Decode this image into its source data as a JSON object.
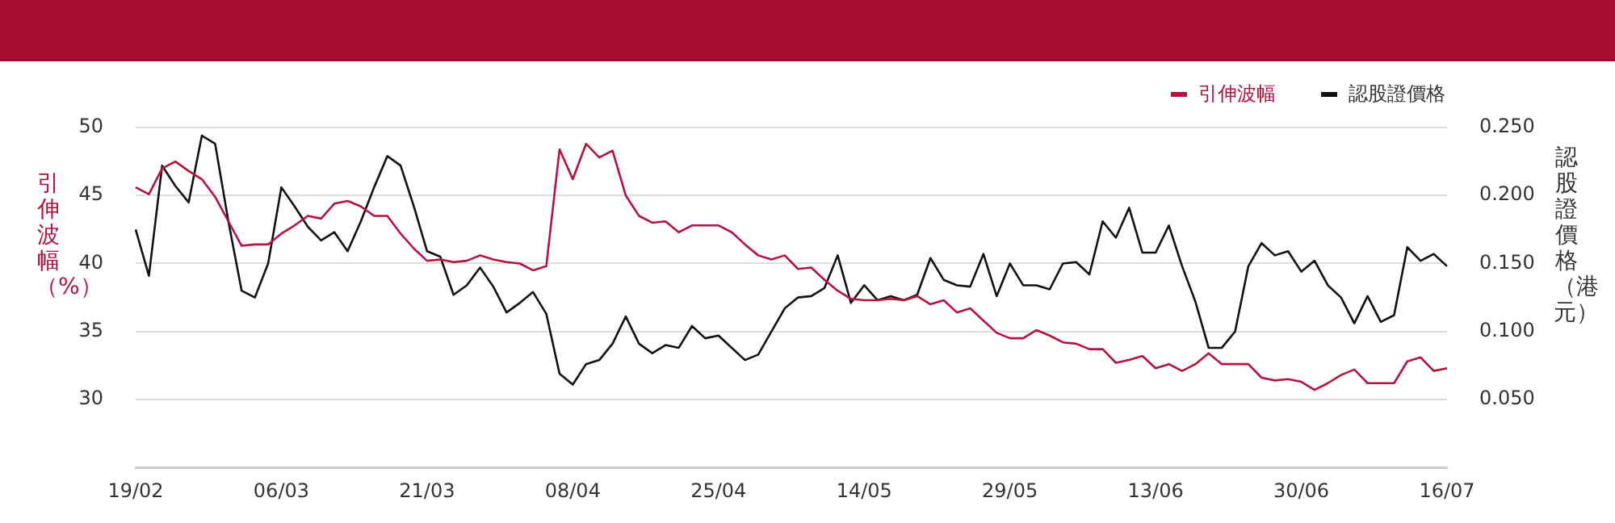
{
  "chart_data": {
    "type": "line",
    "ylabel": "引伸波幅（%）",
    "y2label": "認股證價格（港元）",
    "categories": [
      "19/02",
      null,
      null,
      null,
      null,
      null,
      null,
      null,
      null,
      null,
      null,
      "06/03",
      null,
      null,
      null,
      null,
      null,
      null,
      null,
      null,
      null,
      null,
      "21/03",
      null,
      null,
      null,
      null,
      null,
      null,
      null,
      null,
      null,
      null,
      "08/04",
      null,
      null,
      null,
      null,
      null,
      null,
      null,
      null,
      null,
      null,
      "25/04",
      null,
      null,
      null,
      null,
      null,
      null,
      null,
      null,
      null,
      null,
      "14/05",
      null,
      null,
      null,
      null,
      null,
      null,
      null,
      null,
      null,
      null,
      "29/05",
      null,
      null,
      null,
      null,
      null,
      null,
      null,
      null,
      null,
      null,
      "13/06",
      null,
      null,
      null,
      null,
      null,
      null,
      null,
      null,
      null,
      null,
      "30/06",
      null,
      null,
      null,
      null,
      null,
      null,
      null,
      null,
      null,
      null,
      "16/07"
    ],
    "series": [
      {
        "name": "引伸波幅",
        "color": "#b5123f",
        "values": [
          45.6,
          45.1,
          47.0,
          47.5,
          46.8,
          46.2,
          44.9,
          43.1,
          41.3,
          41.4,
          41.4,
          42.2,
          42.8,
          43.5,
          43.3,
          44.4,
          44.6,
          44.2,
          43.5,
          43.5,
          42.2,
          41.1,
          40.2,
          40.3,
          40.1,
          40.2,
          40.6,
          40.3,
          40.1,
          40.0,
          39.5,
          39.8,
          48.4,
          46.2,
          48.8,
          47.8,
          48.3,
          45.0,
          43.5,
          43.0,
          43.1,
          42.3,
          42.8,
          42.8,
          42.8,
          42.3,
          41.4,
          40.6,
          40.3,
          40.6,
          39.6,
          39.7,
          38.8,
          38.0,
          37.4,
          37.3,
          37.3,
          37.4,
          37.3,
          37.6,
          37.0,
          37.3,
          36.4,
          36.7,
          35.8,
          34.9,
          34.5,
          34.5,
          35.1,
          34.7,
          34.2,
          34.1,
          33.7,
          33.7,
          32.7,
          32.9,
          33.2,
          32.3,
          32.6,
          32.1,
          32.6,
          33.4,
          32.6,
          32.6,
          32.6,
          31.6,
          31.4,
          31.5,
          31.3,
          30.7,
          31.2,
          31.8,
          32.2,
          31.2,
          31.2,
          31.2,
          32.8,
          33.1,
          32.1,
          32.3
        ]
      },
      {
        "name": "認股證價格",
        "color": "#111111",
        "axis": "y2",
        "values": [
          0.175,
          0.141,
          0.222,
          0.207,
          0.195,
          0.244,
          0.238,
          0.181,
          0.13,
          0.125,
          0.15,
          0.206,
          0.192,
          0.177,
          0.167,
          0.173,
          0.159,
          0.181,
          0.206,
          0.229,
          0.222,
          0.192,
          0.159,
          0.155,
          0.127,
          0.134,
          0.147,
          0.133,
          0.114,
          0.121,
          0.129,
          0.113,
          0.069,
          0.061,
          0.076,
          0.079,
          0.091,
          0.111,
          0.091,
          0.084,
          0.09,
          0.088,
          0.104,
          0.095,
          0.097,
          0.088,
          0.079,
          0.083,
          0.1,
          0.117,
          0.125,
          0.126,
          0.132,
          0.156,
          0.121,
          0.134,
          0.123,
          0.126,
          0.123,
          0.127,
          0.154,
          0.138,
          0.134,
          0.133,
          0.157,
          0.126,
          0.15,
          0.134,
          0.134,
          0.131,
          0.15,
          0.151,
          0.142,
          0.181,
          0.169,
          0.191,
          0.158,
          0.158,
          0.178,
          0.148,
          0.122,
          0.088,
          0.088,
          0.1,
          0.148,
          0.165,
          0.156,
          0.159,
          0.144,
          0.152,
          0.134,
          0.125,
          0.106,
          0.126,
          0.107,
          0.112,
          0.162,
          0.152,
          0.157,
          0.148
        ]
      }
    ],
    "ylim": [
      25,
      50
    ],
    "yticks": [
      30,
      35,
      40,
      45,
      50
    ],
    "y2lim": [
      0,
      0.25
    ],
    "y2ticks": [
      {
        "value": 0.05,
        "label": "0.050"
      },
      {
        "value": 0.1,
        "label": "0.100"
      },
      {
        "value": 0.15,
        "label": "0.150"
      },
      {
        "value": 0.2,
        "label": "0.200"
      },
      {
        "value": 0.25,
        "label": "0.250"
      }
    ],
    "grid": "y",
    "legend": "top right",
    "marker": "none",
    "line_style": "solid"
  }
}
